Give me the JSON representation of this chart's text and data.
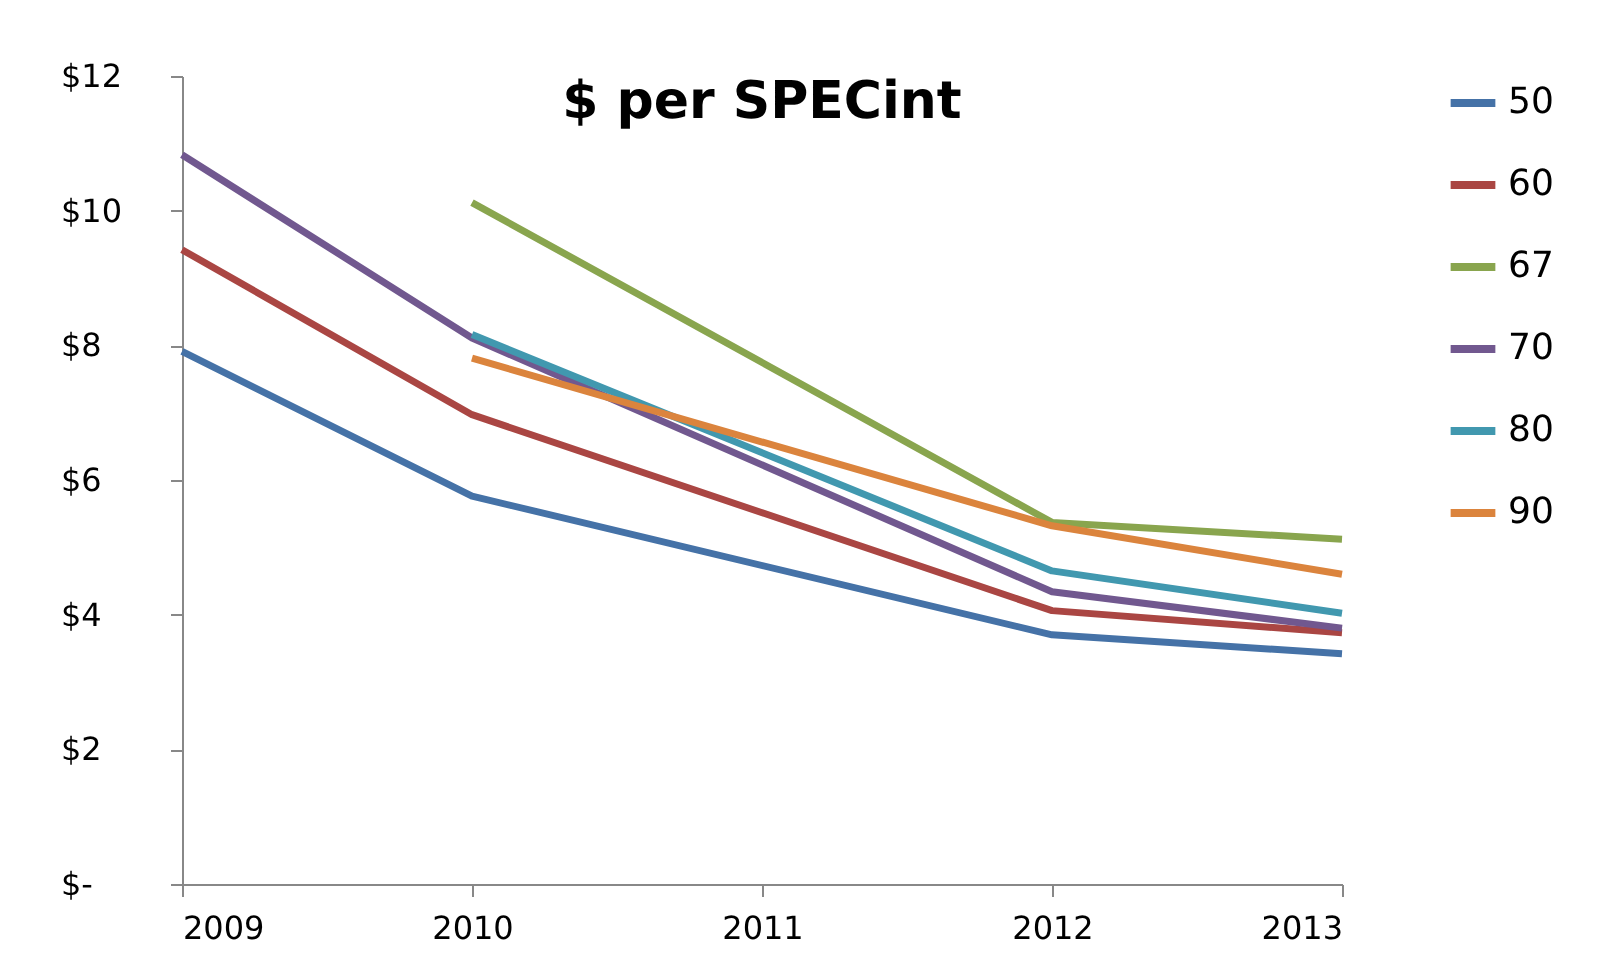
{
  "chart_data": {
    "type": "line",
    "title": "$ per SPECint",
    "x": [
      2009,
      2010,
      2011,
      2012,
      2013
    ],
    "xlim": [
      2009,
      2013
    ],
    "xticks": [
      2009,
      2010,
      2011,
      2012,
      2013
    ],
    "ylim": [
      0,
      12
    ],
    "yticks": [
      {
        "value": 0,
        "label": "$-"
      },
      {
        "value": 2,
        "label": "$2"
      },
      {
        "value": 4,
        "label": "$4"
      },
      {
        "value": 6,
        "label": "$6"
      },
      {
        "value": 8,
        "label": "$8"
      },
      {
        "value": 10,
        "label": "$10"
      },
      {
        "value": 12,
        "label": "$12"
      }
    ],
    "grid": false,
    "legend": "right",
    "marker": "none",
    "line_style": "solid",
    "series": [
      {
        "name": "50",
        "color": "#4572a7",
        "values": [
          7.91,
          5.76,
          null,
          3.7,
          3.42
        ]
      },
      {
        "name": "60",
        "color": "#aa4643",
        "values": [
          9.42,
          6.97,
          null,
          4.06,
          3.73
        ]
      },
      {
        "name": "67",
        "color": "#89a54e",
        "values": [
          null,
          10.12,
          null,
          5.37,
          5.12
        ]
      },
      {
        "name": "70",
        "color": "#71588f",
        "values": [
          10.83,
          8.11,
          null,
          4.34,
          3.8
        ]
      },
      {
        "name": "80",
        "color": "#4198af",
        "values": [
          null,
          8.16,
          null,
          4.65,
          4.02
        ]
      },
      {
        "name": "90",
        "color": "#db843d",
        "values": [
          null,
          7.81,
          null,
          5.32,
          4.6
        ]
      }
    ]
  }
}
